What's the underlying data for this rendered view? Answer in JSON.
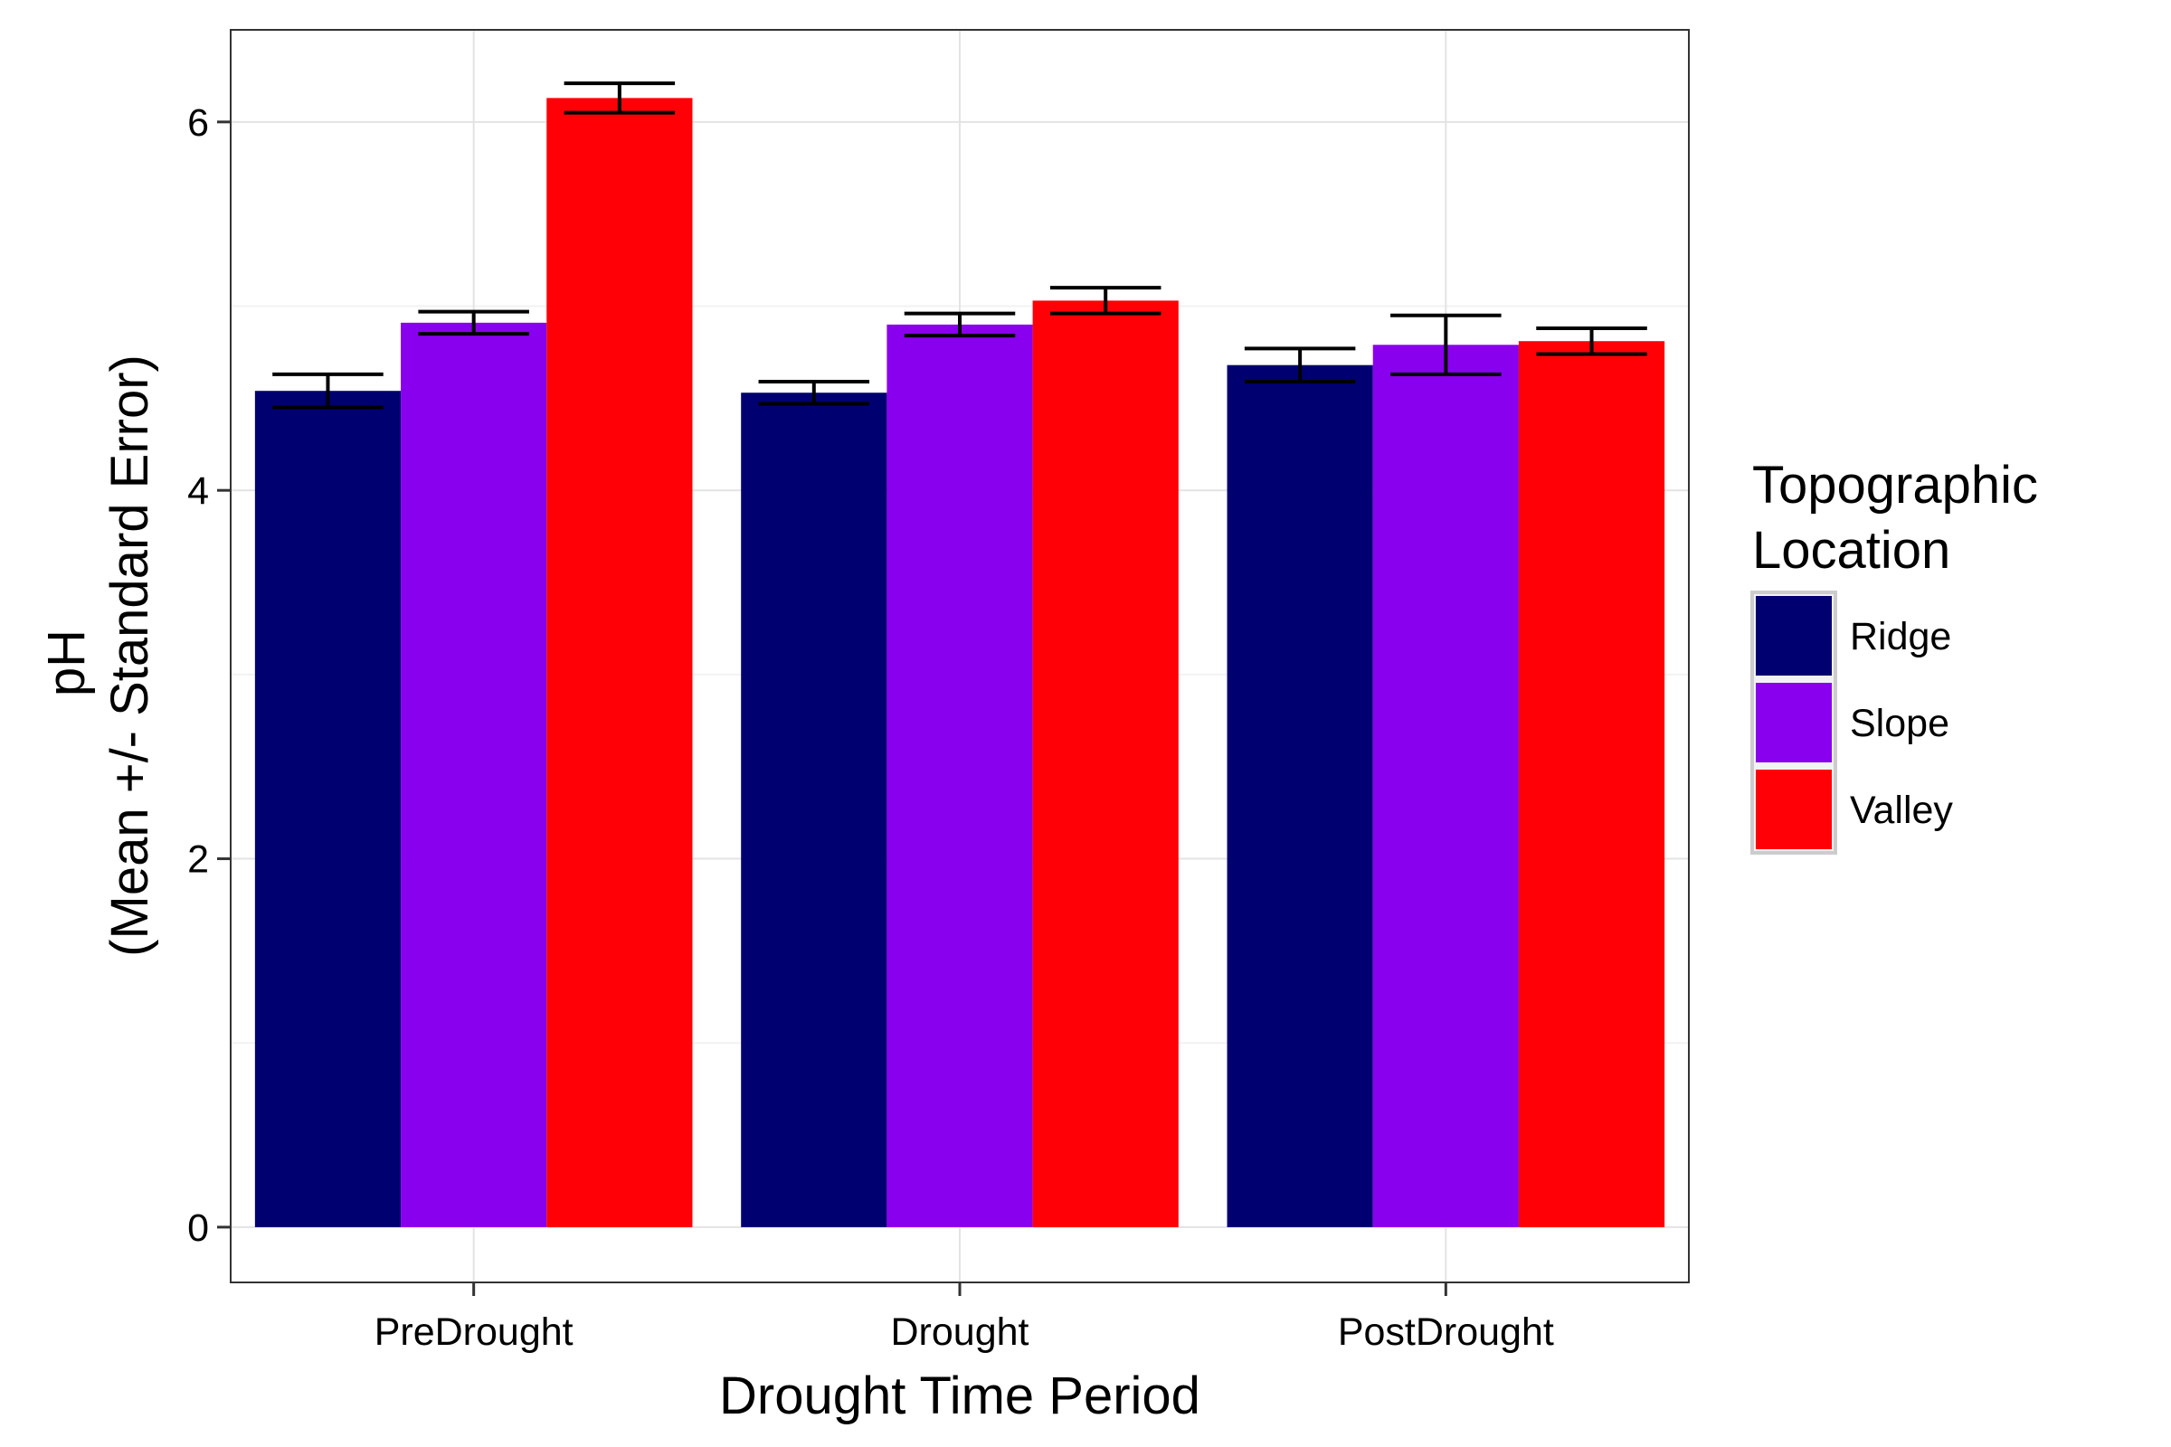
{
  "chart_data": {
    "type": "bar",
    "xlabel": "Drought Time Period",
    "ylabel_lines": [
      "pH",
      "(Mean +/- Standard Error)"
    ],
    "categories": [
      "PreDrought",
      "Drought",
      "PostDrought"
    ],
    "ylim": [
      -0.3,
      6.5
    ],
    "yticks": [
      0,
      2,
      4,
      6
    ],
    "grid": true,
    "legend": {
      "title_lines": [
        "Topographic",
        "Location"
      ],
      "placement": "right"
    },
    "series": [
      {
        "name": "Ridge",
        "color": "#000070",
        "values": [
          4.54,
          4.53,
          4.68
        ],
        "se": [
          0.09,
          0.06,
          0.09
        ]
      },
      {
        "name": "Slope",
        "color": "#8800EE",
        "values": [
          4.91,
          4.9,
          4.79
        ],
        "se": [
          0.06,
          0.06,
          0.16
        ]
      },
      {
        "name": "Valley",
        "color": "#FF0006",
        "values": [
          6.13,
          5.03,
          4.81
        ],
        "se": [
          0.08,
          0.07,
          0.07
        ]
      }
    ]
  }
}
